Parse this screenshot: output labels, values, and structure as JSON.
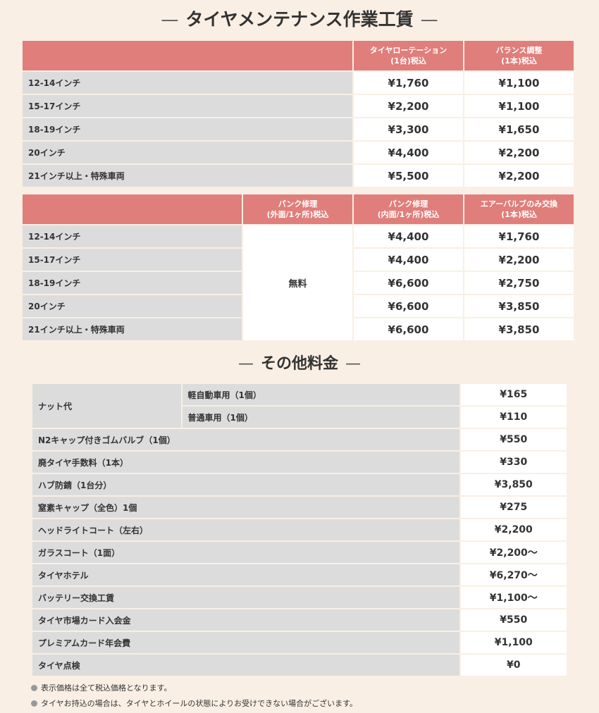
{
  "section1": {
    "title": "タイヤメンテナンス作業工賃",
    "table1": {
      "headers": [
        "",
        "タイヤローテーション\n(1台)税込",
        "バランス調整\n(1本)税込"
      ],
      "rows": [
        [
          "12-14インチ",
          "¥1,760",
          "¥1,100"
        ],
        [
          "15-17インチ",
          "¥2,200",
          "¥1,100"
        ],
        [
          "18-19インチ",
          "¥3,300",
          "¥1,650"
        ],
        [
          "20インチ",
          "¥4,400",
          "¥2,200"
        ],
        [
          "21インチ以上・特殊車両",
          "¥5,500",
          "¥2,200"
        ]
      ]
    },
    "table2": {
      "headers": [
        "",
        "パンク修理\n(外面/1ヶ所)税込",
        "パンク修理\n(内面/1ヶ所)税込",
        "エアーバルブのみ交換\n(1本)税込"
      ],
      "free_label": "無料",
      "rows": [
        [
          "12-14インチ",
          "¥4,400",
          "¥1,760"
        ],
        [
          "15-17インチ",
          "¥4,400",
          "¥2,200"
        ],
        [
          "18-19インチ",
          "¥6,600",
          "¥2,750"
        ],
        [
          "20インチ",
          "¥6,600",
          "¥3,850"
        ],
        [
          "21インチ以上・特殊車両",
          "¥6,600",
          "¥3,850"
        ]
      ]
    }
  },
  "section2": {
    "title": "その他料金",
    "nut": {
      "label": "ナット代",
      "items": [
        [
          "軽自動車用（1個）",
          "¥165"
        ],
        [
          "普通車用（1個）",
          "¥110"
        ]
      ]
    },
    "rows": [
      [
        "N2キャップ付きゴムバルブ（1個）",
        "¥550"
      ],
      [
        "廃タイヤ手数料（1本）",
        "¥330"
      ],
      [
        "ハブ防錆（1台分）",
        "¥3,850"
      ],
      [
        "窒素キャップ（全色）1個",
        "¥275"
      ],
      [
        "ヘッドライトコート（左右）",
        "¥2,200"
      ],
      [
        "ガラスコート（1面）",
        "¥2,200～"
      ],
      [
        "タイヤホテル",
        "¥6,270～"
      ],
      [
        "バッテリー交換工賃",
        "¥1,100～"
      ],
      [
        "タイヤ市場カード入会金",
        "¥550"
      ],
      [
        "プレミアムカード年会費",
        "¥1,100"
      ],
      [
        "タイヤ点検",
        "¥0"
      ]
    ]
  },
  "notes": [
    "表示価格は全て税込価格となります。",
    "タイヤお持込の場合は、タイヤとホイールの状態によりお受けできない場合がございます。"
  ],
  "colors": {
    "header": "#df7e7a",
    "label_bg": "#dcdcdc",
    "page_bg": "#f9efe4"
  }
}
